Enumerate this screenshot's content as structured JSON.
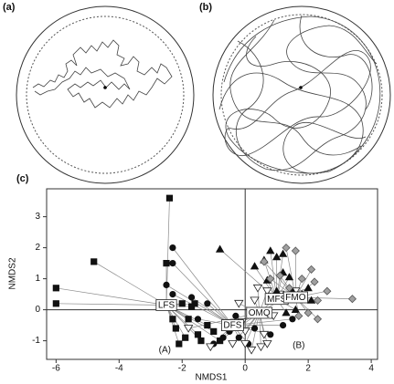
{
  "panels": {
    "a": {
      "label": "(a)"
    },
    "b": {
      "label": "(b)"
    }
  },
  "chart_data": {
    "type": "scatter",
    "label": "(c)",
    "x_label": "NMDS1",
    "y_label": "NMDS2",
    "xlim": [
      -6.3,
      4.2
    ],
    "ylim": [
      -1.6,
      3.9
    ],
    "xticks": [
      -6,
      -4,
      -2,
      0,
      2,
      4
    ],
    "yticks": [
      -1,
      0,
      1,
      2,
      3
    ],
    "series": [
      {
        "name": "LFS",
        "marker": "square",
        "color": "#111111",
        "centroid": {
          "x": -2.5,
          "y": 0.15
        },
        "x": [
          -6,
          -6,
          -4.8,
          -2.4,
          -2.5,
          -2,
          -1.6,
          -1.8,
          -2.2,
          -1.9,
          -2.1,
          -1.5,
          -1.2,
          -1,
          -1.7,
          -2.3,
          -0.8,
          -1.4
        ],
        "y": [
          0.7,
          0.2,
          1.55,
          3.6,
          1.5,
          0.2,
          0.2,
          -0.3,
          -0.6,
          -0.9,
          -1.1,
          -0.8,
          -0.5,
          -0.7,
          0.1,
          -0.3,
          -1.0,
          -1.0
        ]
      },
      {
        "name": "DFS",
        "marker": "circle",
        "color": "#111111",
        "centroid": {
          "x": -0.4,
          "y": -0.5
        },
        "x": [
          -2.3,
          -2.3,
          -2.5,
          -2.3,
          -1.7,
          -1.2,
          -0.6,
          -0.7,
          -1.0,
          -0.3,
          -0.2,
          0.1,
          1.2,
          1.5,
          0.8,
          -0.5,
          -1.5,
          0.3
        ],
        "y": [
          2.0,
          1.5,
          0.8,
          0.5,
          0.4,
          0.2,
          -0.5,
          -0.9,
          -1.1,
          -0.2,
          -0.9,
          -1.1,
          -0.5,
          -0.3,
          -0.8,
          -0.7,
          -0.3,
          -0.6
        ]
      },
      {
        "name": "OMQ",
        "marker": "inverted-triangle",
        "color": "#ffffff",
        "centroid": {
          "x": 0.45,
          "y": -0.1
        },
        "x": [
          -1.8,
          -1.1,
          -0.4,
          0,
          0.2,
          0.5,
          0.6,
          0.3,
          -0.2,
          0.4,
          0.7,
          0.9,
          1.1,
          -0.1,
          0.7,
          1.6,
          0.0
        ],
        "y": [
          -0.6,
          -1.2,
          -1.1,
          -1.1,
          -1.3,
          -1.2,
          -0.8,
          0.3,
          0.2,
          0.7,
          0.6,
          -0.2,
          0.5,
          -0.4,
          -1.1,
          0.6,
          -0.7
        ]
      },
      {
        "name": "MFS",
        "marker": "triangle",
        "color": "#111111",
        "centroid": {
          "x": 1.0,
          "y": 0.35
        },
        "x": [
          -0.8,
          0.3,
          0.6,
          0.8,
          1.0,
          1.2,
          1.4,
          0.7,
          1.0,
          1.5,
          1.8,
          2.1,
          1.6,
          1.3,
          2.0,
          1.2
        ],
        "y": [
          1.95,
          1.4,
          1.6,
          1.9,
          1.7,
          1.8,
          1.05,
          0.95,
          0.6,
          0.6,
          0.5,
          0.3,
          0.0,
          -0.1,
          0.7,
          1.2
        ]
      },
      {
        "name": "FMO",
        "marker": "diamond",
        "color": "#a0a0a0",
        "centroid": {
          "x": 1.6,
          "y": 0.4
        },
        "x": [
          0.6,
          1.3,
          1.6,
          2.1,
          2.2,
          1.8,
          0.8,
          1.1,
          2.3,
          2.0,
          2.3,
          3.4,
          1.4,
          2.6,
          1.7
        ],
        "y": [
          1.55,
          2.0,
          1.9,
          1.3,
          0.9,
          1.0,
          1.0,
          1.1,
          0.3,
          -0.1,
          -0.3,
          0.35,
          0.7,
          0.6,
          -0.2
        ]
      }
    ],
    "annotations": [
      {
        "text": "(A)",
        "x": -2.55,
        "y": -1.3
      },
      {
        "text": "(B)",
        "x": 1.7,
        "y": -1.15
      }
    ]
  }
}
